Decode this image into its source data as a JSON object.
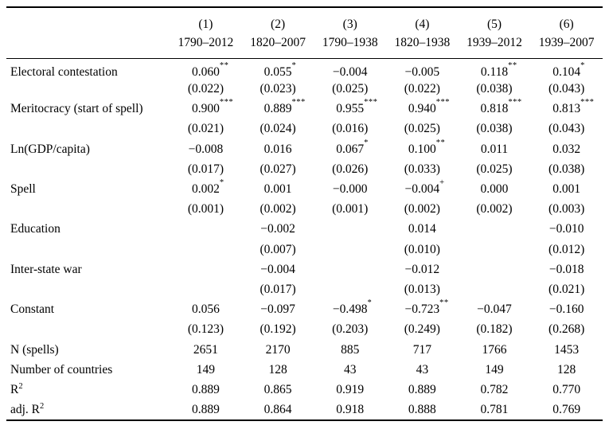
{
  "table": {
    "columns": [
      {
        "num": "(1)",
        "years": "1790–2012"
      },
      {
        "num": "(2)",
        "years": "1820–2007"
      },
      {
        "num": "(3)",
        "years": "1790–1938"
      },
      {
        "num": "(4)",
        "years": "1820–1938"
      },
      {
        "num": "(5)",
        "years": "1939–2012"
      },
      {
        "num": "(6)",
        "years": "1939–2007"
      }
    ],
    "rows": [
      {
        "label": "Electoral contestation",
        "cells": [
          {
            "v": "0.060",
            "s": "**"
          },
          {
            "v": "0.055",
            "s": "*"
          },
          {
            "v": "−0.004"
          },
          {
            "v": "−0.005"
          },
          {
            "v": "0.118",
            "s": "**"
          },
          {
            "v": "0.104",
            "s": "*"
          }
        ]
      },
      {
        "label": "",
        "cells": [
          {
            "v": "(0.022)"
          },
          {
            "v": "(0.023)"
          },
          {
            "v": "(0.025)"
          },
          {
            "v": "(0.022)"
          },
          {
            "v": "(0.038)"
          },
          {
            "v": "(0.043)"
          }
        ]
      },
      {
        "label": "Meritocracy (start of spell)",
        "cells": [
          {
            "v": "0.900",
            "s": "***"
          },
          {
            "v": "0.889",
            "s": "***"
          },
          {
            "v": "0.955",
            "s": "***"
          },
          {
            "v": "0.940",
            "s": "***"
          },
          {
            "v": "0.818",
            "s": "***"
          },
          {
            "v": "0.813",
            "s": "***"
          }
        ]
      },
      {
        "label": "",
        "cells": [
          {
            "v": "(0.021)"
          },
          {
            "v": "(0.024)"
          },
          {
            "v": "(0.016)"
          },
          {
            "v": "(0.025)"
          },
          {
            "v": "(0.038)"
          },
          {
            "v": "(0.043)"
          }
        ]
      },
      {
        "label": "Ln(GDP/capita)",
        "cells": [
          {
            "v": "−0.008"
          },
          {
            "v": "0.016"
          },
          {
            "v": "0.067",
            "s": "*"
          },
          {
            "v": "0.100",
            "s": "**"
          },
          {
            "v": "0.011"
          },
          {
            "v": "0.032"
          }
        ]
      },
      {
        "label": "",
        "cells": [
          {
            "v": "(0.017)"
          },
          {
            "v": "(0.027)"
          },
          {
            "v": "(0.026)"
          },
          {
            "v": "(0.033)"
          },
          {
            "v": "(0.025)"
          },
          {
            "v": "(0.038)"
          }
        ]
      },
      {
        "label": "Spell",
        "cells": [
          {
            "v": "0.002",
            "s": "*"
          },
          {
            "v": "0.001"
          },
          {
            "v": "−0.000"
          },
          {
            "v": "−0.004",
            "s": "+"
          },
          {
            "v": "0.000"
          },
          {
            "v": "0.001"
          }
        ]
      },
      {
        "label": "",
        "cells": [
          {
            "v": "(0.001)"
          },
          {
            "v": "(0.002)"
          },
          {
            "v": "(0.001)"
          },
          {
            "v": "(0.002)"
          },
          {
            "v": "(0.002)"
          },
          {
            "v": "(0.003)"
          }
        ]
      },
      {
        "label": "Education",
        "cells": [
          null,
          {
            "v": "−0.002"
          },
          null,
          {
            "v": "0.014"
          },
          null,
          {
            "v": "−0.010"
          }
        ]
      },
      {
        "label": "",
        "cells": [
          null,
          {
            "v": "(0.007)"
          },
          null,
          {
            "v": "(0.010)"
          },
          null,
          {
            "v": "(0.012)"
          }
        ]
      },
      {
        "label": "Inter-state war",
        "cells": [
          null,
          {
            "v": "−0.004"
          },
          null,
          {
            "v": "−0.012"
          },
          null,
          {
            "v": "−0.018"
          }
        ]
      },
      {
        "label": "",
        "cells": [
          null,
          {
            "v": "(0.017)"
          },
          null,
          {
            "v": "(0.013)"
          },
          null,
          {
            "v": "(0.021)"
          }
        ]
      },
      {
        "label": "Constant",
        "cells": [
          {
            "v": "0.056"
          },
          {
            "v": "−0.097"
          },
          {
            "v": "−0.498",
            "s": "*"
          },
          {
            "v": "−0.723",
            "s": "**"
          },
          {
            "v": "−0.047"
          },
          {
            "v": "−0.160"
          }
        ]
      },
      {
        "label": "",
        "cells": [
          {
            "v": "(0.123)"
          },
          {
            "v": "(0.192)"
          },
          {
            "v": "(0.203)"
          },
          {
            "v": "(0.249)"
          },
          {
            "v": "(0.182)"
          },
          {
            "v": "(0.268)"
          }
        ]
      },
      {
        "label": "N (spells)",
        "cells": [
          {
            "v": "2651"
          },
          {
            "v": "2170"
          },
          {
            "v": "885"
          },
          {
            "v": "717"
          },
          {
            "v": "1766"
          },
          {
            "v": "1453"
          }
        ]
      },
      {
        "label": "Number of countries",
        "cells": [
          {
            "v": "149"
          },
          {
            "v": "128"
          },
          {
            "v": "43"
          },
          {
            "v": "43"
          },
          {
            "v": "149"
          },
          {
            "v": "128"
          }
        ]
      },
      {
        "label": "R",
        "label_sup": "2",
        "cells": [
          {
            "v": "0.889"
          },
          {
            "v": "0.865"
          },
          {
            "v": "0.919"
          },
          {
            "v": "0.889"
          },
          {
            "v": "0.782"
          },
          {
            "v": "0.770"
          }
        ]
      },
      {
        "label": "adj. R",
        "label_sup": "2",
        "cells": [
          {
            "v": "0.889"
          },
          {
            "v": "0.864"
          },
          {
            "v": "0.918"
          },
          {
            "v": "0.888"
          },
          {
            "v": "0.781"
          },
          {
            "v": "0.769"
          }
        ]
      }
    ]
  }
}
